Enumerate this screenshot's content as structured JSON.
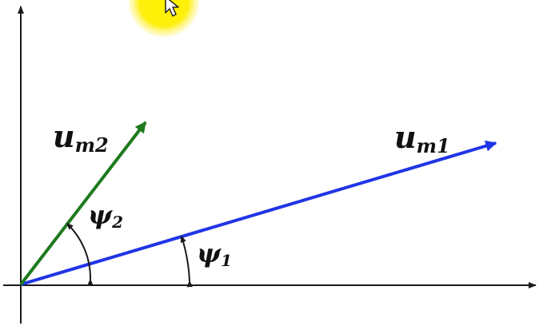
{
  "colors": {
    "background": "#ffffff",
    "axis": "#1a1a1a",
    "vector_1": "#1f35e6",
    "vector_2": "#1d7a1d",
    "angle_arc": "#1a1a1a",
    "cursor_highlight": "#fff200",
    "cursor": "#ffffff"
  },
  "vectors": {
    "um1": {
      "symbol": "u",
      "subscript": "m1"
    },
    "um2": {
      "symbol": "u",
      "subscript": "m2"
    }
  },
  "angles": {
    "psi1": {
      "symbol": "ψ",
      "subscript": "1"
    },
    "psi2": {
      "symbol": "ψ",
      "subscript": "2"
    }
  },
  "icons": {
    "cursor": "mouse-pointer-icon",
    "highlight": "cursor-highlight-icon"
  }
}
